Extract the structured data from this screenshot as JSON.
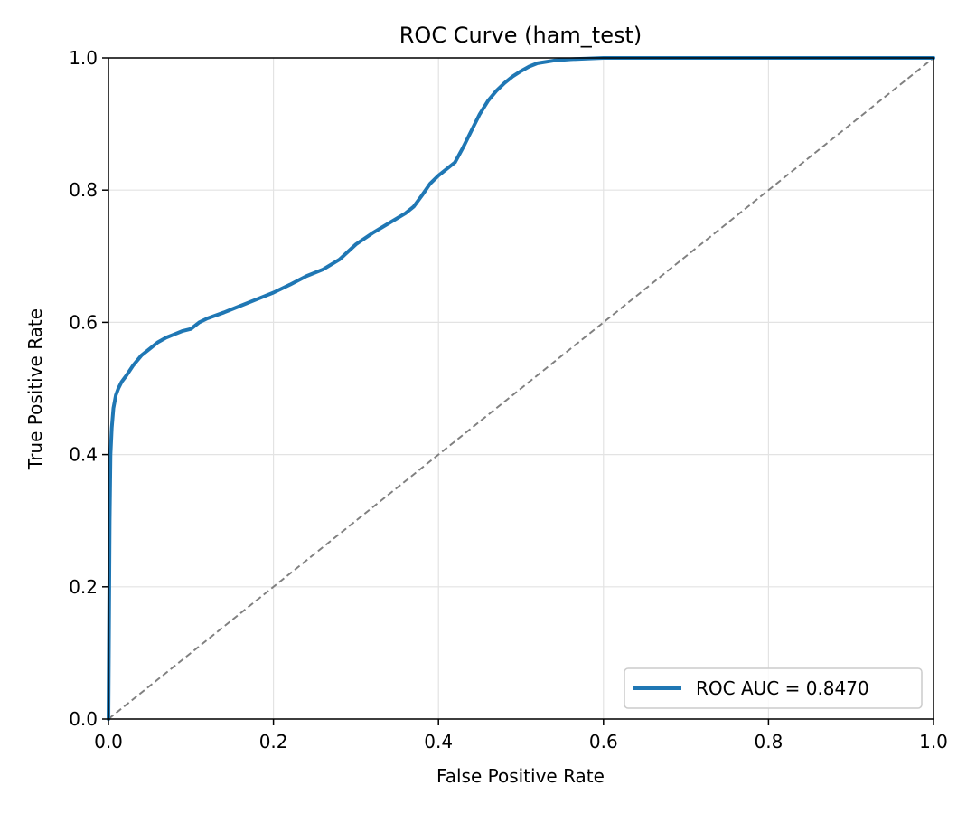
{
  "chart_data": {
    "type": "line",
    "title": "ROC Curve (ham_test)",
    "xlabel": "False Positive Rate",
    "ylabel": "True Positive Rate",
    "xlim": [
      0.0,
      1.0
    ],
    "ylim": [
      0.0,
      1.0
    ],
    "xticks": [
      "0.0",
      "0.2",
      "0.4",
      "0.6",
      "0.8",
      "1.0"
    ],
    "yticks": [
      "0.0",
      "0.2",
      "0.4",
      "0.6",
      "0.8",
      "1.0"
    ],
    "grid": true,
    "legend_location": "lower-right",
    "series": [
      {
        "name": "ROC AUC = 0.8470",
        "color": "#1f77b4",
        "x": [
          0.0,
          0.0015,
          0.0025,
          0.004,
          0.006,
          0.009,
          0.012,
          0.016,
          0.022,
          0.03,
          0.04,
          0.05,
          0.06,
          0.07,
          0.08,
          0.09,
          0.1,
          0.11,
          0.12,
          0.14,
          0.16,
          0.18,
          0.2,
          0.22,
          0.24,
          0.26,
          0.28,
          0.3,
          0.32,
          0.34,
          0.36,
          0.37,
          0.38,
          0.39,
          0.4,
          0.42,
          0.43,
          0.44,
          0.45,
          0.46,
          0.47,
          0.48,
          0.49,
          0.5,
          0.51,
          0.52,
          0.54,
          0.56,
          0.58,
          0.6,
          0.65,
          0.7,
          0.8,
          0.9,
          1.0
        ],
        "y": [
          0.0,
          0.3,
          0.4,
          0.44,
          0.47,
          0.49,
          0.5,
          0.51,
          0.52,
          0.535,
          0.55,
          0.56,
          0.57,
          0.577,
          0.582,
          0.587,
          0.59,
          0.6,
          0.606,
          0.615,
          0.625,
          0.635,
          0.645,
          0.657,
          0.67,
          0.68,
          0.695,
          0.718,
          0.735,
          0.75,
          0.765,
          0.775,
          0.792,
          0.81,
          0.822,
          0.842,
          0.865,
          0.89,
          0.915,
          0.935,
          0.95,
          0.962,
          0.972,
          0.98,
          0.987,
          0.992,
          0.996,
          0.998,
          0.999,
          1.0,
          1.0,
          1.0,
          1.0,
          1.0,
          1.0
        ]
      },
      {
        "name": "",
        "color": "#808080",
        "style": "dashed",
        "x": [
          0.0,
          1.0
        ],
        "y": [
          0.0,
          1.0
        ]
      }
    ]
  }
}
